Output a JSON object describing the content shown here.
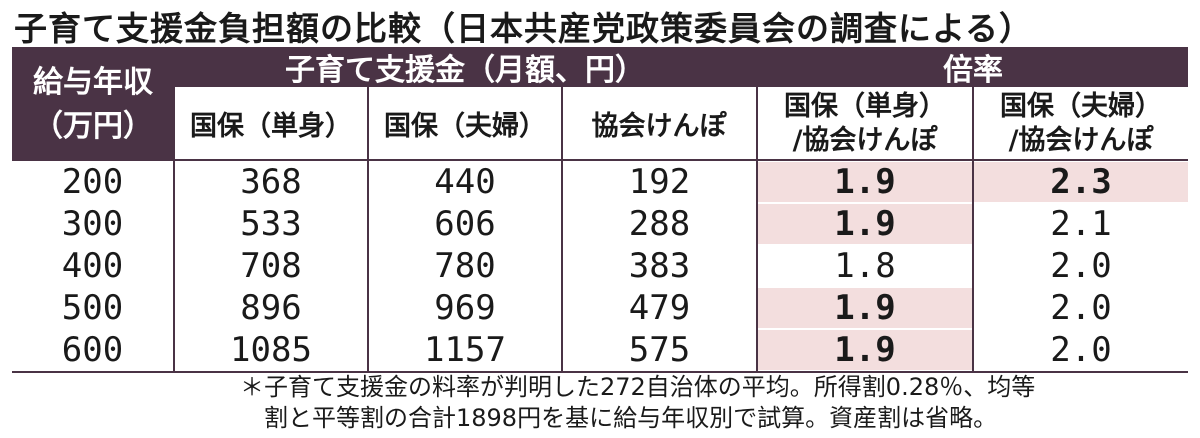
{
  "title": "子育て支援金負担額の比較（日本共産党政策委員会の調査による）",
  "table": {
    "header_income": [
      "給与年収",
      "（万円）"
    ],
    "header_group_amount": "子育て支援金（月額、円）",
    "header_group_ratio": "倍率",
    "sub_headers": [
      "国保（単身）",
      "国保（夫婦）",
      "協会けんぽ"
    ],
    "ratio_headers": [
      [
        "国保（単身）",
        "/協会けんぽ"
      ],
      [
        "国保（夫婦）",
        "/協会けんぽ"
      ]
    ],
    "rows": [
      {
        "income": "200",
        "single": "368",
        "couple": "440",
        "kyokai": "192",
        "ratio_single": "1.9",
        "ratio_couple": "2.3",
        "hl_single": true,
        "hl_couple": true
      },
      {
        "income": "300",
        "single": "533",
        "couple": "606",
        "kyokai": "288",
        "ratio_single": "1.9",
        "ratio_couple": "2.1",
        "hl_single": true,
        "hl_couple": false
      },
      {
        "income": "400",
        "single": "708",
        "couple": "780",
        "kyokai": "383",
        "ratio_single": "1.8",
        "ratio_couple": "2.0",
        "hl_single": false,
        "hl_couple": false
      },
      {
        "income": "500",
        "single": "896",
        "couple": "969",
        "kyokai": "479",
        "ratio_single": "1.9",
        "ratio_couple": "2.0",
        "hl_single": true,
        "hl_couple": false
      },
      {
        "income": "600",
        "single": "1085",
        "couple": "1157",
        "kyokai": "575",
        "ratio_single": "1.9",
        "ratio_couple": "2.0",
        "hl_single": true,
        "hl_couple": false
      }
    ]
  },
  "footnote": [
    "＊子育て支援金の料率が判明した272自治体の平均。所得割0.28％、均等",
    "割と平等割の合計1898円を基に給与年収別で試算。資産割は省略。"
  ],
  "colors": {
    "header": "#4a3345",
    "highlight": "#f3dede"
  }
}
